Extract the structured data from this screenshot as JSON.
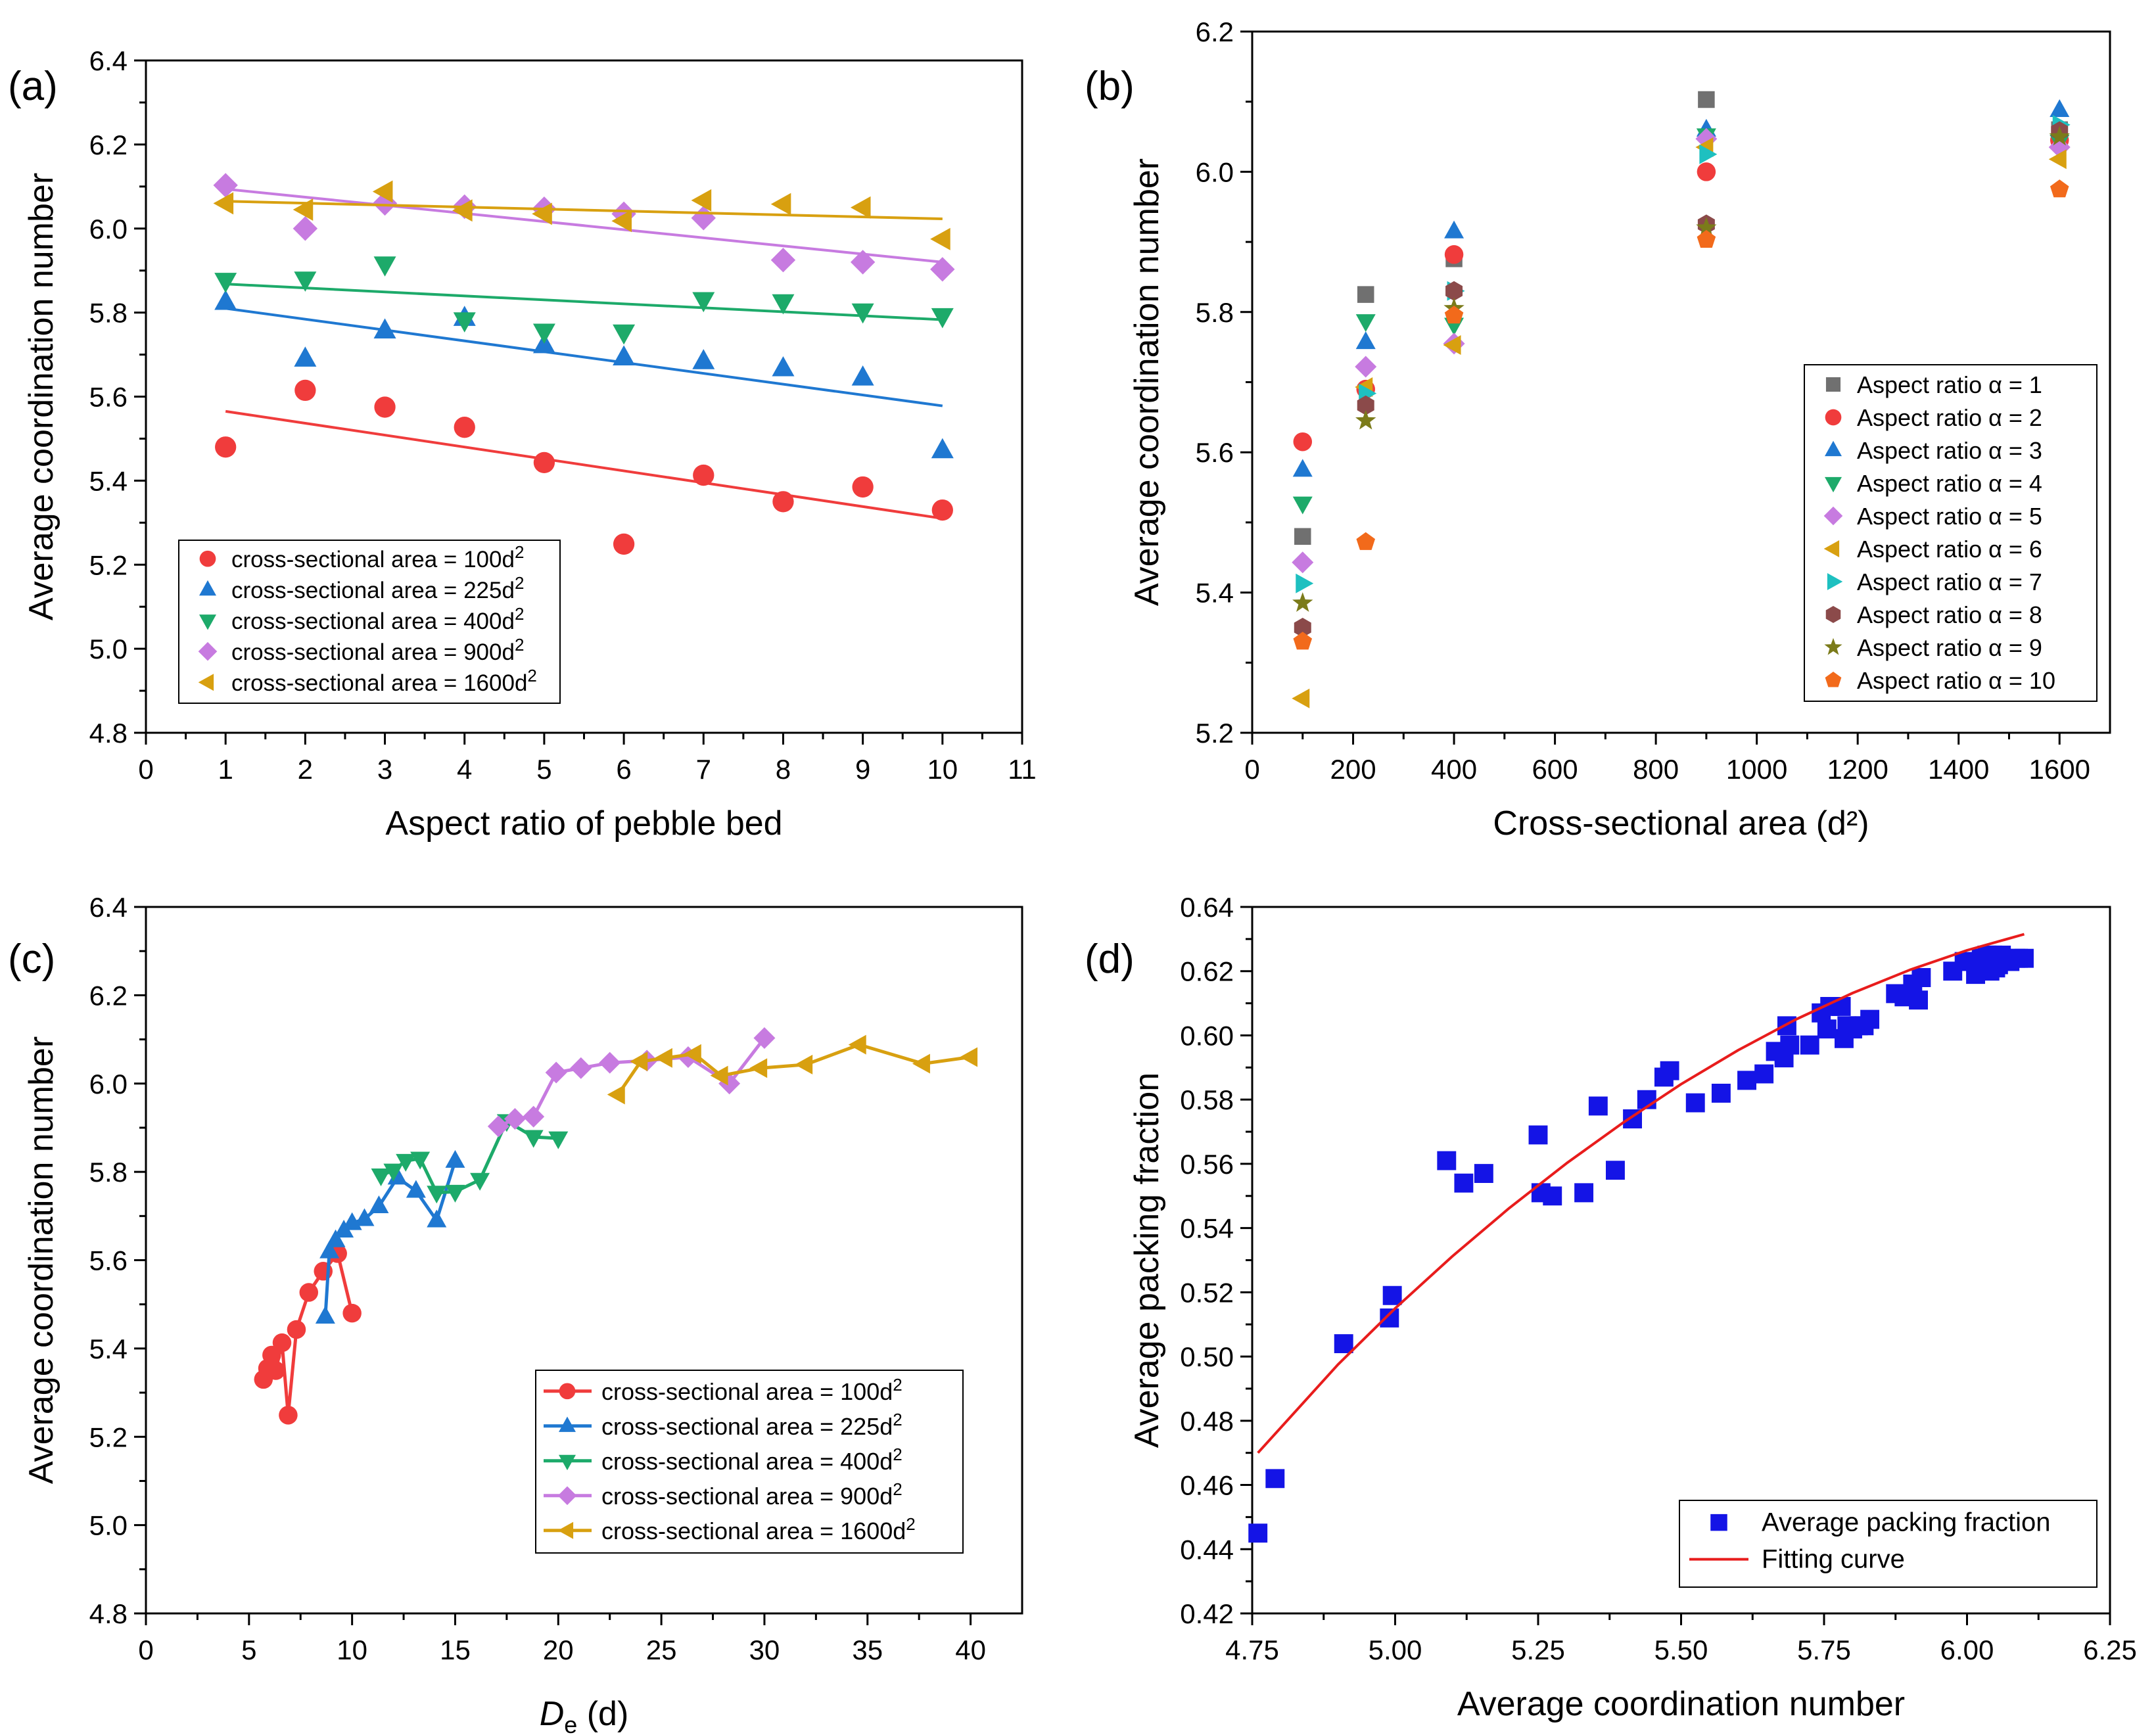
{
  "figure": {
    "title": ""
  },
  "chart_data": [
    {
      "id": "a",
      "panel_label": "(a)",
      "type": "scatter",
      "xlabel": "Aspect ratio of pebble bed",
      "ylabel": "Average coordination number",
      "xlim": [
        0,
        11
      ],
      "ylim": [
        4.8,
        6.4
      ],
      "xticks": [
        0,
        1,
        2,
        3,
        4,
        5,
        6,
        7,
        8,
        9,
        10,
        11
      ],
      "yticks": [
        4.8,
        5.0,
        5.2,
        5.4,
        5.6,
        5.8,
        6.0,
        6.2,
        6.4
      ],
      "ytick_decimals": 1,
      "legend_position": "lower-left",
      "series": [
        {
          "name": "cross-sectional area = 100d",
          "sup": "2",
          "marker": "circle",
          "color": "#f03c3c",
          "x": [
            1,
            2,
            3,
            4,
            5,
            6,
            7,
            8,
            9,
            10
          ],
          "y": [
            5.48,
            5.615,
            5.575,
            5.527,
            5.443,
            5.249,
            5.413,
            5.35,
            5.385,
            5.33
          ],
          "fit": {
            "x": [
              1,
              10
            ],
            "y": [
              5.565,
              5.31
            ]
          }
        },
        {
          "name": "cross-sectional area = 225d",
          "sup": "2",
          "marker": "triangle-up",
          "color": "#1f78d1",
          "x": [
            1,
            2,
            3,
            4,
            5,
            6,
            7,
            8,
            9,
            10
          ],
          "y": [
            5.825,
            5.69,
            5.757,
            5.787,
            5.722,
            5.693,
            5.684,
            5.667,
            5.645,
            5.472
          ],
          "fit": {
            "x": [
              1,
              10
            ],
            "y": [
              5.81,
              5.578
            ]
          }
        },
        {
          "name": "cross-sectional area = 400d",
          "sup": "2",
          "marker": "triangle-down",
          "color": "#1daa6a",
          "x": [
            1,
            2,
            3,
            4,
            5,
            6,
            7,
            8,
            9,
            10
          ],
          "y": [
            5.876,
            5.879,
            5.915,
            5.782,
            5.755,
            5.753,
            5.83,
            5.825,
            5.803,
            5.792
          ],
          "fit": {
            "x": [
              1,
              10
            ],
            "y": [
              5.868,
              5.783
            ]
          }
        },
        {
          "name": "cross-sectional area = 900d",
          "sup": "2",
          "marker": "diamond",
          "color": "#c77be0",
          "x": [
            1,
            2,
            3,
            4,
            5,
            6,
            7,
            8,
            9,
            10
          ],
          "y": [
            6.103,
            6.0,
            6.06,
            6.052,
            6.047,
            6.035,
            6.025,
            5.925,
            5.92,
            5.903
          ],
          "fit": {
            "x": [
              1,
              10
            ],
            "y": [
              6.094,
              5.92
            ]
          }
        },
        {
          "name": "cross-sectional area = 1600d",
          "sup": "2",
          "marker": "triangle-left",
          "color": "#d8a010",
          "x": [
            1,
            2,
            3,
            4,
            5,
            6,
            7,
            8,
            9,
            10
          ],
          "y": [
            6.06,
            6.045,
            6.088,
            6.043,
            6.035,
            6.018,
            6.067,
            6.058,
            6.05,
            5.975
          ],
          "fit": {
            "x": [
              1,
              10
            ],
            "y": [
              6.065,
              6.023
            ]
          }
        }
      ]
    },
    {
      "id": "b",
      "panel_label": "(b)",
      "type": "scatter",
      "xlabel": "Cross-sectional area (d²)",
      "ylabel": "Average coordination number",
      "xlim": [
        0,
        1700
      ],
      "ylim": [
        5.2,
        6.2
      ],
      "xticks": [
        0,
        200,
        400,
        600,
        800,
        1000,
        1200,
        1400,
        1600
      ],
      "yticks": [
        5.2,
        5.4,
        5.6,
        5.8,
        6.0,
        6.2
      ],
      "ytick_decimals": 1,
      "legend_position": "right",
      "series": [
        {
          "name": "Aspect ratio α = 1",
          "marker": "square",
          "color": "#707070",
          "x": [
            100,
            225,
            400,
            900,
            1600
          ],
          "y": [
            5.48,
            5.825,
            5.876,
            6.103,
            6.06
          ]
        },
        {
          "name": "Aspect ratio α = 2",
          "marker": "circle",
          "color": "#f03c3c",
          "x": [
            100,
            225,
            400,
            900,
            1600
          ],
          "y": [
            5.615,
            5.69,
            5.882,
            6.0,
            6.045
          ]
        },
        {
          "name": "Aspect ratio α = 3",
          "marker": "triangle-up",
          "color": "#1f78d1",
          "x": [
            100,
            225,
            400,
            900,
            1600
          ],
          "y": [
            5.575,
            5.757,
            5.915,
            6.06,
            6.088
          ]
        },
        {
          "name": "Aspect ratio α = 4",
          "marker": "triangle-down",
          "color": "#1daa6a",
          "x": [
            100,
            225,
            400,
            900,
            1600
          ],
          "y": [
            5.527,
            5.787,
            5.782,
            6.052,
            6.043
          ]
        },
        {
          "name": "Aspect ratio α = 5",
          "marker": "diamond",
          "color": "#c77be0",
          "x": [
            100,
            225,
            400,
            900,
            1600
          ],
          "y": [
            5.443,
            5.722,
            5.755,
            6.047,
            6.035
          ]
        },
        {
          "name": "Aspect ratio α = 6",
          "marker": "triangle-left",
          "color": "#d8a010",
          "x": [
            100,
            225,
            400,
            900,
            1600
          ],
          "y": [
            5.249,
            5.693,
            5.753,
            6.035,
            6.018
          ]
        },
        {
          "name": "Aspect ratio α = 7",
          "marker": "triangle-right",
          "color": "#1ec0c0",
          "x": [
            100,
            225,
            400,
            900,
            1600
          ],
          "y": [
            5.413,
            5.684,
            5.83,
            6.025,
            6.067
          ]
        },
        {
          "name": "Aspect ratio α = 8",
          "marker": "hexagon",
          "color": "#8b4a4a",
          "x": [
            100,
            225,
            400,
            900,
            1600
          ],
          "y": [
            5.35,
            5.667,
            5.83,
            5.925,
            6.058
          ]
        },
        {
          "name": "Aspect ratio α = 9",
          "marker": "star",
          "color": "#7b7b1a",
          "x": [
            100,
            225,
            400,
            900,
            1600
          ],
          "y": [
            5.385,
            5.645,
            5.805,
            5.92,
            6.05
          ]
        },
        {
          "name": "Aspect ratio α = 10",
          "marker": "pentagon",
          "color": "#f26a1b",
          "x": [
            100,
            225,
            400,
            900,
            1600
          ],
          "y": [
            5.33,
            5.472,
            5.795,
            5.903,
            5.975
          ]
        }
      ]
    },
    {
      "id": "c",
      "panel_label": "(c)",
      "type": "line",
      "xlabel_main": "D",
      "xlabel_sub": "e",
      "xlabel_rest": " (d)",
      "ylabel": "Average coordination number",
      "xlim": [
        0,
        42.5
      ],
      "ylim": [
        4.8,
        6.4
      ],
      "xticks": [
        0,
        5,
        10,
        15,
        20,
        25,
        30,
        35,
        40
      ],
      "yticks": [
        4.8,
        5.0,
        5.2,
        5.4,
        5.6,
        5.8,
        6.0,
        6.2,
        6.4
      ],
      "ytick_decimals": 1,
      "legend_position": "lower-right",
      "series": [
        {
          "name": "cross-sectional area = 100d",
          "sup": "2",
          "marker": "circle",
          "color": "#f03c3c",
          "x": [
            10.0,
            9.3,
            8.6,
            7.9,
            7.3,
            6.9,
            6.6,
            6.3,
            6.1,
            5.9,
            5.7
          ],
          "y": [
            5.48,
            5.615,
            5.575,
            5.527,
            5.443,
            5.249,
            5.413,
            5.35,
            5.385,
            5.355,
            5.33
          ]
        },
        {
          "name": "cross-sectional area = 225d",
          "sup": "2",
          "marker": "triangle-up",
          "color": "#1f78d1",
          "x": [
            15.0,
            14.1,
            13.1,
            12.2,
            11.3,
            10.6,
            10.0,
            9.6,
            9.2,
            8.9,
            8.7
          ],
          "y": [
            5.825,
            5.69,
            5.757,
            5.787,
            5.722,
            5.693,
            5.684,
            5.667,
            5.645,
            5.62,
            5.472
          ]
        },
        {
          "name": "cross-sectional area = 400d",
          "sup": "2",
          "marker": "triangle-down",
          "color": "#1daa6a",
          "x": [
            20.0,
            18.8,
            17.5,
            16.2,
            15.0,
            14.1,
            13.3,
            12.6,
            12.0,
            11.4
          ],
          "y": [
            5.876,
            5.879,
            5.915,
            5.782,
            5.755,
            5.753,
            5.83,
            5.825,
            5.803,
            5.792
          ]
        },
        {
          "name": "cross-sectional area = 900d",
          "sup": "2",
          "marker": "diamond",
          "color": "#c77be0",
          "x": [
            30.0,
            28.3,
            26.3,
            24.3,
            22.5,
            21.1,
            19.9,
            18.8,
            17.9,
            17.1
          ],
          "y": [
            6.103,
            6.0,
            6.06,
            6.052,
            6.047,
            6.035,
            6.025,
            5.925,
            5.92,
            5.903
          ]
        },
        {
          "name": "cross-sectional area = 1600d",
          "sup": "2",
          "marker": "triangle-left",
          "color": "#d8a010",
          "x": [
            40.0,
            37.7,
            34.6,
            32.0,
            29.8,
            27.9,
            26.6,
            25.2,
            24.0,
            22.9
          ],
          "y": [
            6.06,
            6.045,
            6.088,
            6.043,
            6.035,
            6.018,
            6.067,
            6.058,
            6.05,
            5.975
          ]
        }
      ]
    },
    {
      "id": "d",
      "panel_label": "(d)",
      "type": "scatter",
      "xlabel": "Average coordination number",
      "ylabel": "Average packing fraction",
      "xlim": [
        4.75,
        6.25
      ],
      "ylim": [
        0.42,
        0.64
      ],
      "xticks": [
        4.75,
        5.0,
        5.25,
        5.5,
        5.75,
        6.0,
        6.25
      ],
      "yticks": [
        0.42,
        0.44,
        0.46,
        0.48,
        0.5,
        0.52,
        0.54,
        0.56,
        0.58,
        0.6,
        0.62,
        0.64
      ],
      "xtick_decimals": 2,
      "ytick_decimals": 2,
      "legend_position": "lower-right",
      "series": [
        {
          "name": "Average packing fraction",
          "marker": "square",
          "color": "#1414e6",
          "x": [
            4.76,
            4.79,
            4.91,
            4.99,
            4.995,
            5.09,
            5.12,
            5.155,
            5.25,
            5.255,
            5.275,
            5.33,
            5.355,
            5.385,
            5.415,
            5.44,
            5.47,
            5.48,
            5.525,
            5.57,
            5.615,
            5.645,
            5.665,
            5.68,
            5.685,
            5.69,
            5.725,
            5.745,
            5.755,
            5.76,
            5.78,
            5.785,
            5.79,
            5.8,
            5.81,
            5.82,
            5.83,
            5.875,
            5.89,
            5.905,
            5.915,
            5.92,
            5.975,
            5.995,
            6.005,
            6.015,
            6.02,
            6.025,
            6.03,
            6.035,
            6.04,
            6.045,
            6.05,
            6.055,
            6.06,
            6.065,
            6.075,
            6.085,
            6.09,
            6.1
          ],
          "y": [
            0.445,
            0.462,
            0.504,
            0.512,
            0.519,
            0.561,
            0.554,
            0.557,
            0.569,
            0.551,
            0.55,
            0.551,
            0.578,
            0.558,
            0.574,
            0.58,
            0.587,
            0.589,
            0.579,
            0.582,
            0.586,
            0.588,
            0.595,
            0.593,
            0.603,
            0.597,
            0.597,
            0.607,
            0.602,
            0.609,
            0.609,
            0.599,
            0.603,
            0.602,
            0.603,
            0.603,
            0.605,
            0.613,
            0.612,
            0.616,
            0.611,
            0.618,
            0.62,
            0.623,
            0.623,
            0.619,
            0.621,
            0.624,
            0.622,
            0.625,
            0.62,
            0.625,
            0.621,
            0.622,
            0.625,
            0.623,
            0.623,
            0.624,
            0.624,
            0.624
          ]
        },
        {
          "name": "Fitting curve",
          "marker": "line",
          "color": "#e81c1c",
          "x": [
            4.76,
            4.9,
            5.0,
            5.1,
            5.2,
            5.3,
            5.4,
            5.5,
            5.6,
            5.7,
            5.8,
            5.9,
            6.0,
            6.1
          ],
          "y": [
            0.47,
            0.4975,
            0.515,
            0.5312,
            0.5463,
            0.5602,
            0.573,
            0.5848,
            0.5954,
            0.6049,
            0.6132,
            0.6204,
            0.6265,
            0.6315
          ],
          "fit_formula_note": ""
        }
      ]
    }
  ]
}
